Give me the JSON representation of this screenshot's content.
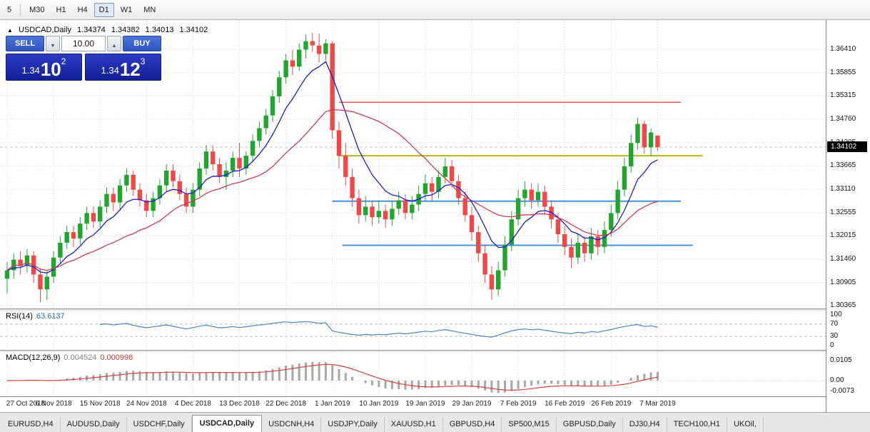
{
  "toolbar": {
    "timeframes": [
      {
        "label": "5",
        "active": false
      },
      {
        "label": "M30",
        "active": false
      },
      {
        "label": "H1",
        "active": false
      },
      {
        "label": "H4",
        "active": false
      },
      {
        "label": "D1",
        "active": true
      },
      {
        "label": "W1",
        "active": false
      },
      {
        "label": "MN",
        "active": false
      }
    ]
  },
  "chart_header": {
    "symbol": "USDCAD,Daily",
    "open": "1.34374",
    "high": "1.34382",
    "low": "1.34013",
    "close": "1.34102"
  },
  "trade_panel": {
    "sell_label": "SELL",
    "buy_label": "BUY",
    "volume": "10.00",
    "sell_price": {
      "base": "1.34",
      "pips": "10",
      "sup": "2"
    },
    "buy_price": {
      "base": "1.34",
      "pips": "12",
      "sup": "3"
    }
  },
  "rsi_panel": {
    "title": "RSI(14)",
    "value": "63.6137"
  },
  "macd_panel": {
    "title": "MACD(12,26,9)",
    "value1": "0.004524",
    "value2": "0.000998"
  },
  "tabs": {
    "items": [
      {
        "label": "EURUSD,H4",
        "active": false
      },
      {
        "label": "AUDUSD,Daily",
        "active": false
      },
      {
        "label": "USDCHF,Daily",
        "active": false
      },
      {
        "label": "USDCAD,Daily",
        "active": true
      },
      {
        "label": "USDCNH,H4",
        "active": false
      },
      {
        "label": "USDJPY,Daily",
        "active": false
      },
      {
        "label": "XAUUSD,H1",
        "active": false
      },
      {
        "label": "GBPUSD,H4",
        "active": false
      },
      {
        "label": "SP500,M15",
        "active": false
      },
      {
        "label": "GBPUSD,Daily",
        "active": false
      },
      {
        "label": "DJ30,H4",
        "active": false
      },
      {
        "label": "TECH100,H1",
        "active": false
      },
      {
        "label": "UKOil,",
        "active": false
      }
    ]
  },
  "chart_data": {
    "type": "candlestick",
    "title": "USDCAD,Daily",
    "x_labels": [
      "27 Oct 2018",
      "6 Nov 2018",
      "15 Nov 2018",
      "24 Nov 2018",
      "4 Dec 2018",
      "13 Dec 2018",
      "22 Dec 2018",
      "1 Jan 2019",
      "10 Jan 2019",
      "19 Jan 2019",
      "29 Jan 2019",
      "7 Feb 2019",
      "16 Feb 2019",
      "26 Feb 2019",
      "7 Mar 2019"
    ],
    "x_label_step": 7,
    "y_ticks": [
      1.3641,
      1.35855,
      1.35315,
      1.3476,
      1.34205,
      1.33665,
      1.3311,
      1.32555,
      1.32015,
      1.3146,
      1.30905,
      1.30365
    ],
    "y_range": [
      1.303,
      1.371
    ],
    "current_price": 1.34102,
    "up_color": "#22a52f",
    "down_color": "#f04848",
    "candles": [
      [
        1.31,
        1.314,
        1.3065,
        1.312
      ],
      [
        1.312,
        1.316,
        1.31,
        1.3145
      ],
      [
        1.3145,
        1.3165,
        1.311,
        1.313
      ],
      [
        1.313,
        1.317,
        1.3115,
        1.3155
      ],
      [
        1.3155,
        1.3165,
        1.309,
        1.311
      ],
      [
        1.311,
        1.3125,
        1.3045,
        1.3075
      ],
      [
        1.3075,
        1.312,
        1.305,
        1.3105
      ],
      [
        1.3105,
        1.3165,
        1.309,
        1.315
      ],
      [
        1.315,
        1.32,
        1.3135,
        1.3185
      ],
      [
        1.3185,
        1.3225,
        1.317,
        1.321
      ],
      [
        1.321,
        1.3225,
        1.3175,
        1.3195
      ],
      [
        1.3195,
        1.3245,
        1.318,
        1.323
      ],
      [
        1.323,
        1.327,
        1.3215,
        1.3255
      ],
      [
        1.3255,
        1.327,
        1.322,
        1.3235
      ],
      [
        1.3235,
        1.3285,
        1.322,
        1.327
      ],
      [
        1.327,
        1.3315,
        1.3255,
        1.33
      ],
      [
        1.33,
        1.3315,
        1.326,
        1.328
      ],
      [
        1.328,
        1.3335,
        1.3265,
        1.332
      ],
      [
        1.332,
        1.336,
        1.3305,
        1.3345
      ],
      [
        1.3345,
        1.3355,
        1.3295,
        1.331
      ],
      [
        1.331,
        1.3325,
        1.327,
        1.3285
      ],
      [
        1.3285,
        1.33,
        1.3245,
        1.326
      ],
      [
        1.326,
        1.3305,
        1.3245,
        1.329
      ],
      [
        1.329,
        1.3335,
        1.3275,
        1.332
      ],
      [
        1.332,
        1.337,
        1.3305,
        1.3355
      ],
      [
        1.3355,
        1.337,
        1.3315,
        1.333
      ],
      [
        1.333,
        1.3345,
        1.3285,
        1.33
      ],
      [
        1.33,
        1.3315,
        1.3255,
        1.327
      ],
      [
        1.327,
        1.3325,
        1.3255,
        1.331
      ],
      [
        1.331,
        1.3375,
        1.3295,
        1.336
      ],
      [
        1.336,
        1.3415,
        1.3345,
        1.34
      ],
      [
        1.34,
        1.3415,
        1.3355,
        1.337
      ],
      [
        1.337,
        1.3385,
        1.3325,
        1.334
      ],
      [
        1.334,
        1.3375,
        1.331,
        1.3355
      ],
      [
        1.3355,
        1.34,
        1.334,
        1.3385
      ],
      [
        1.3385,
        1.342,
        1.334,
        1.336
      ],
      [
        1.336,
        1.34,
        1.3345,
        1.339
      ],
      [
        1.339,
        1.344,
        1.3375,
        1.3425
      ],
      [
        1.3425,
        1.347,
        1.341,
        1.3455
      ],
      [
        1.3455,
        1.35,
        1.344,
        1.3485
      ],
      [
        1.3485,
        1.3545,
        1.347,
        1.353
      ],
      [
        1.353,
        1.359,
        1.3515,
        1.3575
      ],
      [
        1.3575,
        1.363,
        1.356,
        1.3615
      ],
      [
        1.3615,
        1.364,
        1.358,
        1.36
      ],
      [
        1.36,
        1.3655,
        1.359,
        1.364
      ],
      [
        1.364,
        1.3675,
        1.362,
        1.366
      ],
      [
        1.366,
        1.368,
        1.3635,
        1.365
      ],
      [
        1.365,
        1.3678,
        1.361,
        1.363
      ],
      [
        1.363,
        1.3665,
        1.3615,
        1.3655
      ],
      [
        1.3655,
        1.366,
        1.343,
        1.345
      ],
      [
        1.345,
        1.347,
        1.336,
        1.339
      ],
      [
        1.339,
        1.342,
        1.332,
        1.334
      ],
      [
        1.334,
        1.336,
        1.327,
        1.329
      ],
      [
        1.329,
        1.331,
        1.323,
        1.325
      ],
      [
        1.325,
        1.3295,
        1.3235,
        1.327
      ],
      [
        1.327,
        1.3285,
        1.3225,
        1.3245
      ],
      [
        1.3245,
        1.3285,
        1.323,
        1.326
      ],
      [
        1.326,
        1.3275,
        1.322,
        1.324
      ],
      [
        1.324,
        1.3285,
        1.3225,
        1.3265
      ],
      [
        1.3265,
        1.3305,
        1.325,
        1.3285
      ],
      [
        1.3285,
        1.33,
        1.324,
        1.3255
      ],
      [
        1.3255,
        1.3295,
        1.324,
        1.3275
      ],
      [
        1.3275,
        1.332,
        1.326,
        1.33
      ],
      [
        1.33,
        1.3345,
        1.3285,
        1.3325
      ],
      [
        1.3325,
        1.334,
        1.3285,
        1.3305
      ],
      [
        1.3305,
        1.3355,
        1.329,
        1.334
      ],
      [
        1.334,
        1.3385,
        1.3325,
        1.3365
      ],
      [
        1.3365,
        1.338,
        1.3315,
        1.333
      ],
      [
        1.333,
        1.3345,
        1.3275,
        1.329
      ],
      [
        1.329,
        1.3305,
        1.3235,
        1.325
      ],
      [
        1.325,
        1.327,
        1.319,
        1.321
      ],
      [
        1.321,
        1.3225,
        1.314,
        1.316
      ],
      [
        1.316,
        1.318,
        1.309,
        1.311
      ],
      [
        1.311,
        1.313,
        1.305,
        1.3075
      ],
      [
        1.3075,
        1.314,
        1.306,
        1.312
      ],
      [
        1.312,
        1.32,
        1.3105,
        1.318
      ],
      [
        1.318,
        1.326,
        1.3165,
        1.324
      ],
      [
        1.324,
        1.331,
        1.3225,
        1.329
      ],
      [
        1.329,
        1.333,
        1.327,
        1.331
      ],
      [
        1.331,
        1.3325,
        1.3265,
        1.3285
      ],
      [
        1.3285,
        1.3325,
        1.327,
        1.3305
      ],
      [
        1.3305,
        1.332,
        1.325,
        1.327
      ],
      [
        1.327,
        1.3285,
        1.322,
        1.324
      ],
      [
        1.324,
        1.3255,
        1.3185,
        1.3205
      ],
      [
        1.3205,
        1.3225,
        1.3155,
        1.3175
      ],
      [
        1.3175,
        1.3195,
        1.3125,
        1.315
      ],
      [
        1.315,
        1.3205,
        1.3135,
        1.3185
      ],
      [
        1.3185,
        1.32,
        1.314,
        1.316
      ],
      [
        1.316,
        1.322,
        1.3145,
        1.32
      ],
      [
        1.32,
        1.3215,
        1.3155,
        1.3175
      ],
      [
        1.3175,
        1.3235,
        1.316,
        1.3215
      ],
      [
        1.3215,
        1.3275,
        1.32,
        1.3255
      ],
      [
        1.3255,
        1.333,
        1.324,
        1.331
      ],
      [
        1.331,
        1.3385,
        1.3295,
        1.3365
      ],
      [
        1.3365,
        1.344,
        1.335,
        1.342
      ],
      [
        1.342,
        1.348,
        1.3405,
        1.3465
      ],
      [
        1.3465,
        1.3472,
        1.3395,
        1.341
      ],
      [
        1.341,
        1.3455,
        1.339,
        1.3445
      ],
      [
        1.34374,
        1.34382,
        1.34013,
        1.34102
      ]
    ],
    "moving_averages": [
      {
        "period": 8,
        "method": "ema",
        "color": "#1c1ccd"
      },
      {
        "period": 20,
        "method": "sma",
        "color": "#c73e54"
      }
    ],
    "hlines": [
      {
        "price": 1.3516,
        "color": "#ef5350",
        "from": 50,
        "to": 101.5,
        "width": 1.6
      },
      {
        "price": 1.339,
        "color": "#b9b514",
        "from": 50,
        "to": 104.8,
        "width": 2
      },
      {
        "price": 1.3283,
        "color": "#4a90d9",
        "from": 49,
        "to": 101.5,
        "width": 2
      },
      {
        "price": 1.3179,
        "color": "#4a90d9",
        "from": 50.5,
        "to": 103.3,
        "width": 2
      }
    ],
    "rsi": {
      "period": 14,
      "color": "#4a84c0",
      "levels": [
        100,
        70,
        30,
        0
      ],
      "current": 63.6137
    },
    "macd": {
      "fast": 12,
      "slow": 26,
      "signal": 9,
      "hist_color": "#a8a8a8",
      "signal_color": "#d04545",
      "levels": [
        {
          "text": "0.0105",
          "value": 0.0105
        },
        {
          "text": "0.00",
          "value": 0
        },
        {
          "text": "-0.0073",
          "value": -0.0073
        }
      ],
      "current": [
        0.004524,
        0.000998
      ]
    }
  }
}
